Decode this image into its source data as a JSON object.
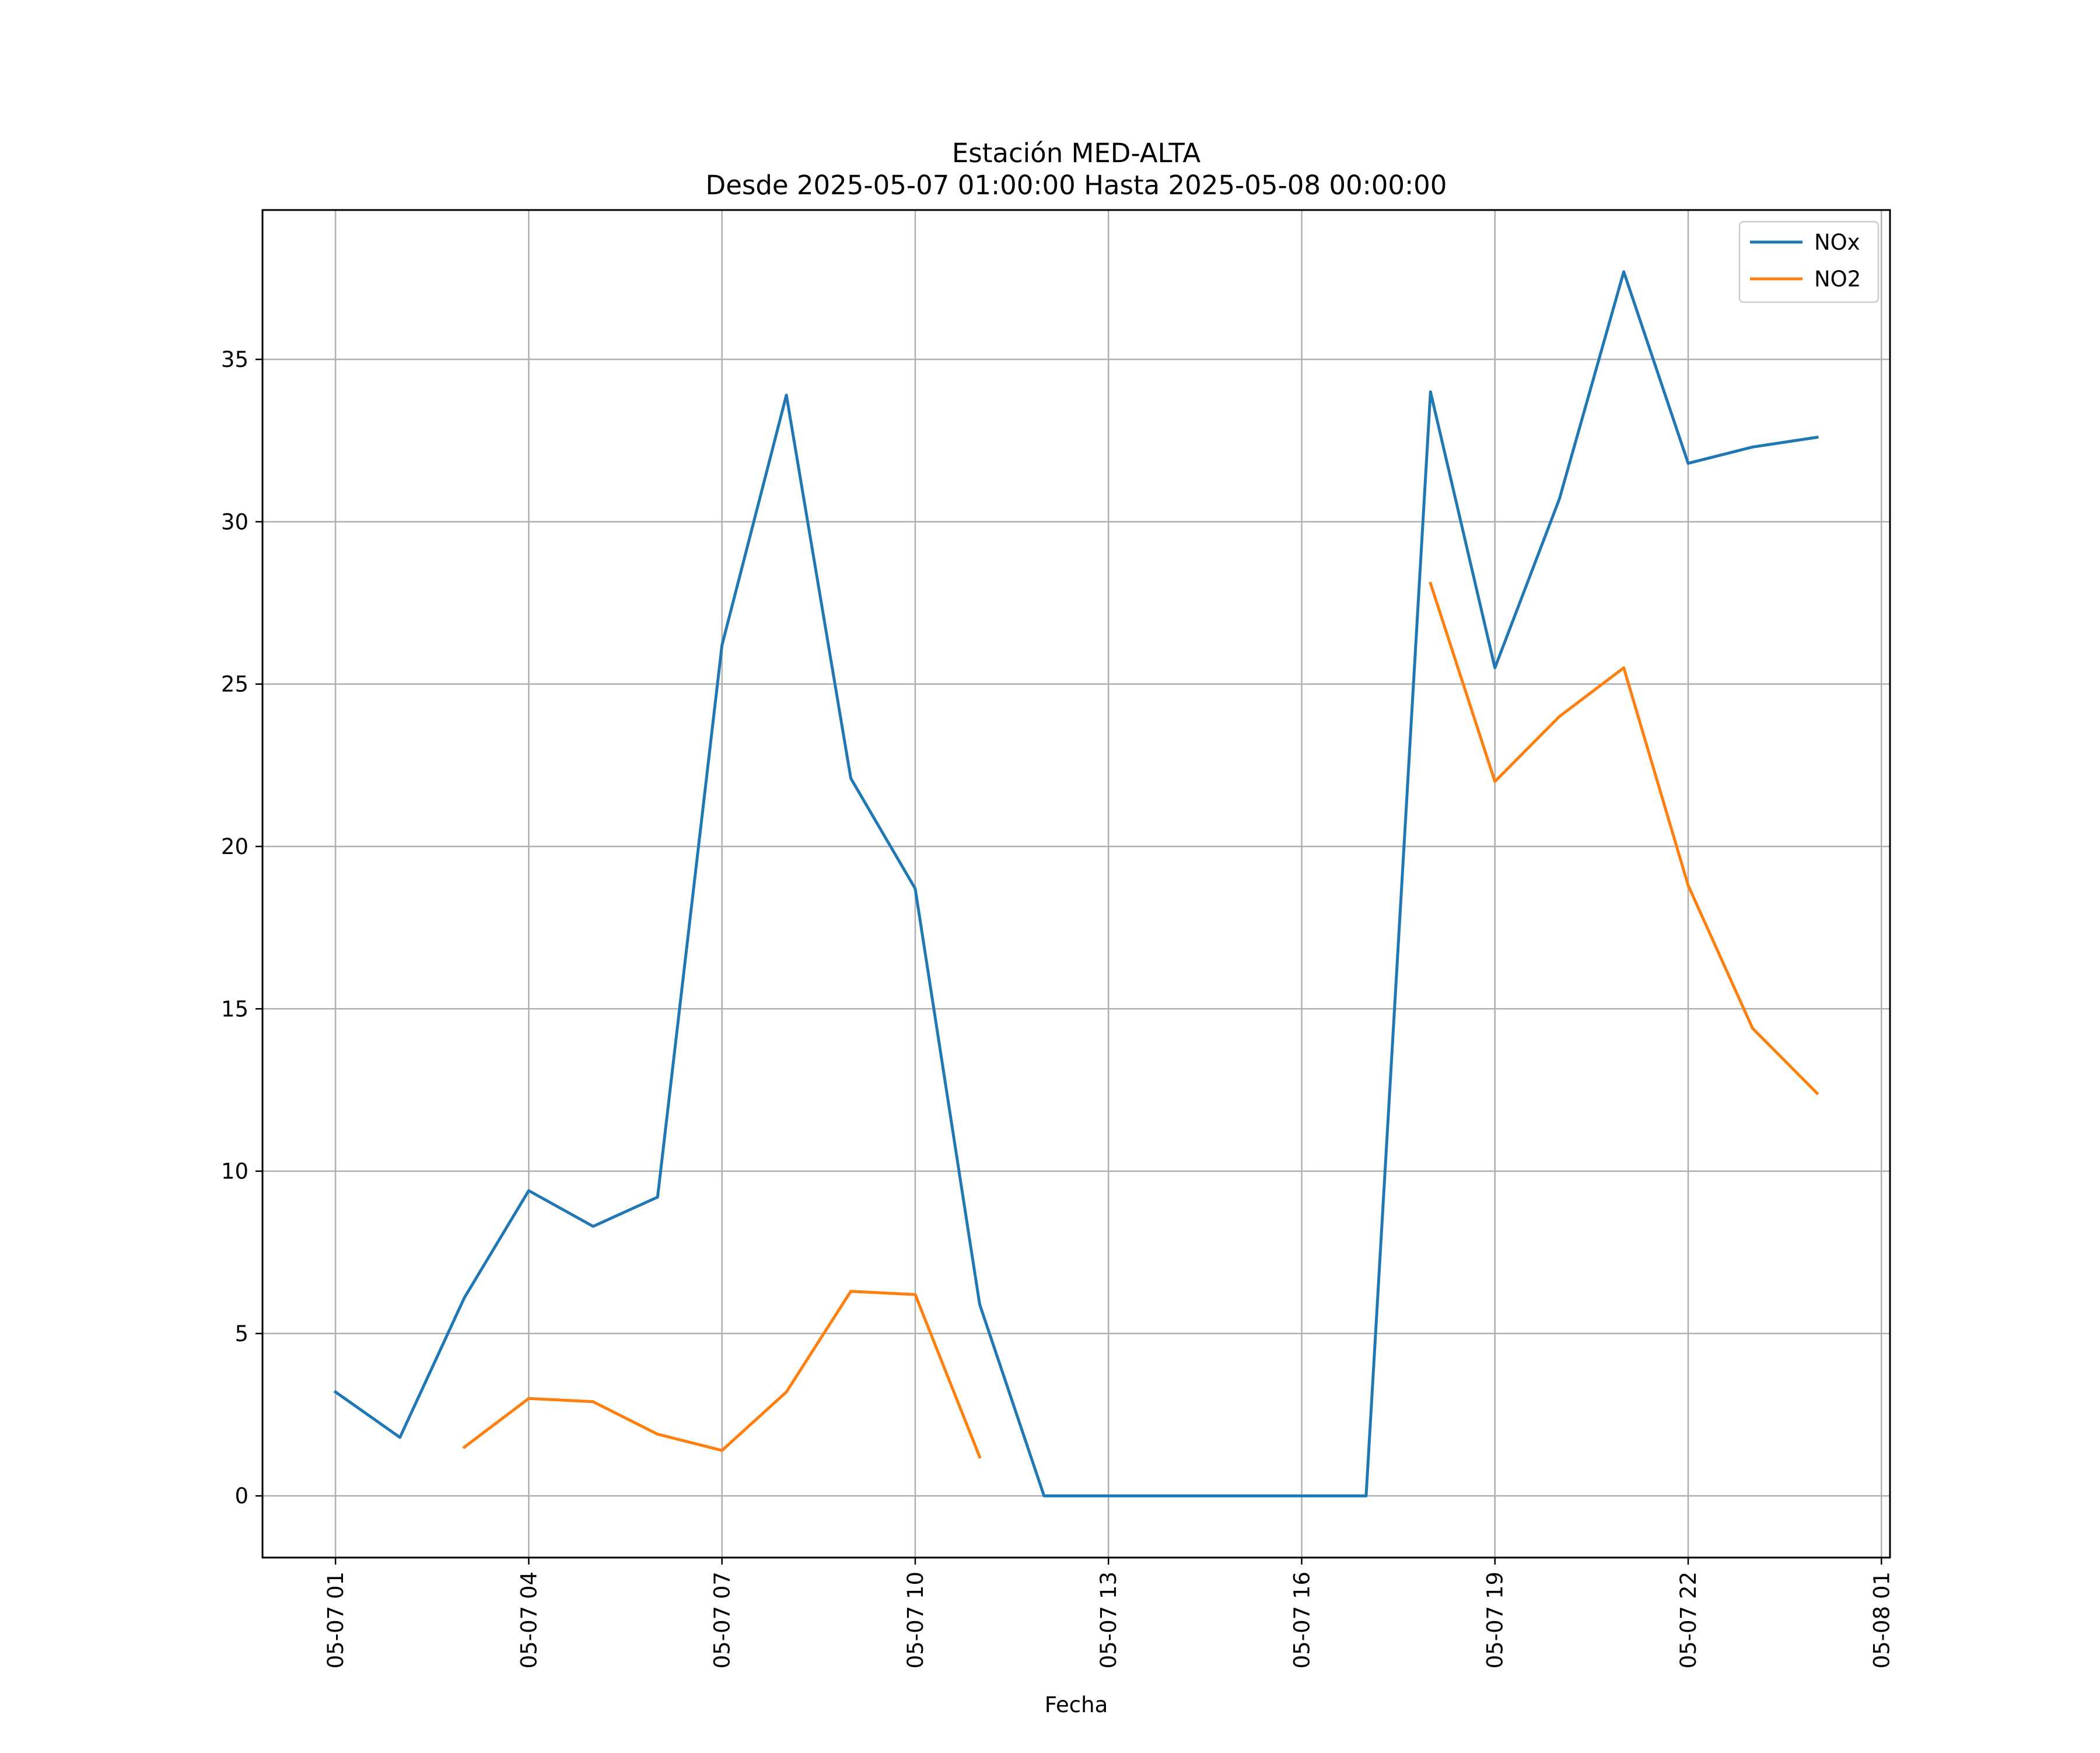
{
  "chart_data": {
    "type": "line",
    "title": "Estación MED-ALTA",
    "subtitle": "Desde 2025-05-07 01:00:00 Hasta 2025-05-08 00:00:00",
    "xlabel": "Fecha",
    "ylabel": "",
    "x": [
      "2025-05-07 01:00",
      "2025-05-07 02:00",
      "2025-05-07 03:00",
      "2025-05-07 04:00",
      "2025-05-07 05:00",
      "2025-05-07 06:00",
      "2025-05-07 07:00",
      "2025-05-07 08:00",
      "2025-05-07 09:00",
      "2025-05-07 10:00",
      "2025-05-07 11:00",
      "2025-05-07 12:00",
      "2025-05-07 13:00",
      "2025-05-07 14:00",
      "2025-05-07 15:00",
      "2025-05-07 16:00",
      "2025-05-07 17:00",
      "2025-05-07 18:00",
      "2025-05-07 19:00",
      "2025-05-07 20:00",
      "2025-05-07 21:00",
      "2025-05-07 22:00",
      "2025-05-07 23:00",
      "2025-05-08 00:00"
    ],
    "series": [
      {
        "name": "NOx",
        "color": "#1f77b4",
        "values": [
          3.2,
          1.8,
          6.1,
          9.4,
          8.3,
          9.2,
          26.2,
          33.9,
          22.1,
          18.7,
          5.9,
          0,
          0,
          0,
          0,
          0,
          0,
          34.0,
          25.5,
          30.7,
          37.7,
          31.8,
          32.3,
          32.6
        ]
      },
      {
        "name": "NO2",
        "color": "#ff7f0e",
        "values": [
          null,
          null,
          1.5,
          3.0,
          2.9,
          1.9,
          1.4,
          3.2,
          6.3,
          6.2,
          1.2,
          null,
          null,
          null,
          null,
          null,
          null,
          28.1,
          22.0,
          24.0,
          25.5,
          18.8,
          14.4,
          12.4
        ]
      }
    ],
    "xticks": [
      "05-07 01",
      "05-07 04",
      "05-07 07",
      "05-07 10",
      "05-07 13",
      "05-07 16",
      "05-07 19",
      "05-07 22",
      "05-08 01"
    ],
    "xtick_dates": [
      "2025-05-07 01:00",
      "2025-05-07 04:00",
      "2025-05-07 07:00",
      "2025-05-07 10:00",
      "2025-05-07 13:00",
      "2025-05-07 16:00",
      "2025-05-07 19:00",
      "2025-05-07 22:00",
      "2025-05-08 01:00"
    ],
    "yticks": [
      "0",
      "5",
      "10",
      "15",
      "20",
      "25",
      "30",
      "35"
    ],
    "ytick_values": [
      0,
      5,
      10,
      15,
      20,
      25,
      30,
      35
    ],
    "xlim": [
      "2025-05-06 23:52",
      "2025-05-08 01:08"
    ],
    "ylim": [
      -1.9,
      39.6
    ],
    "grid": true,
    "legend_position": "upper right",
    "colors": {
      "grid": "#b0b0b0",
      "frame": "#000000"
    }
  }
}
